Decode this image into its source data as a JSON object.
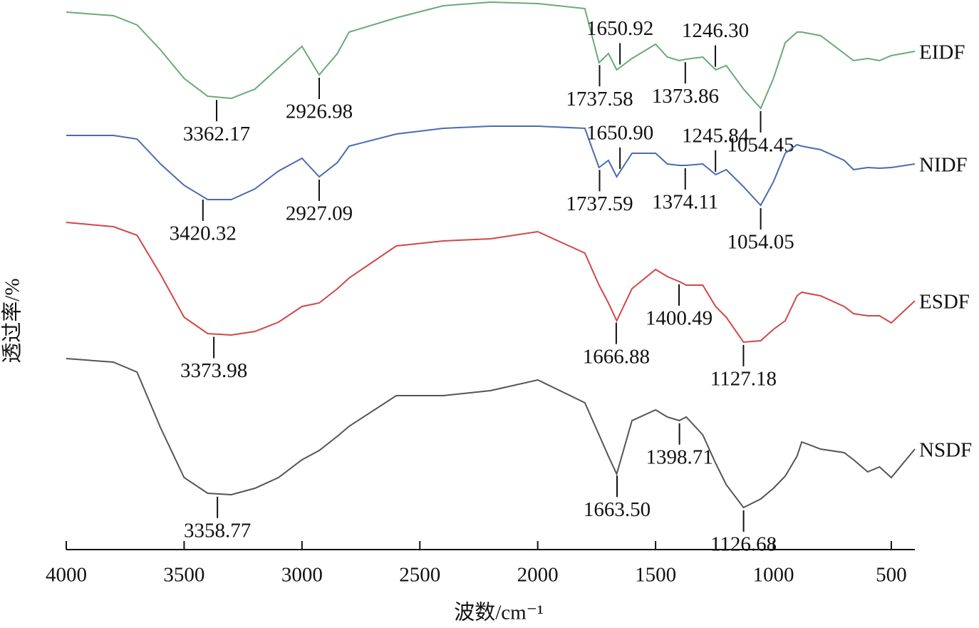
{
  "chart_data": {
    "type": "line",
    "x_label": "波数/cm⁻¹",
    "y_label": "透过率/%",
    "xlim": [
      4000,
      400
    ],
    "ylim": [
      0,
      77.1
    ],
    "xticks": [
      4000,
      3500,
      3000,
      2500,
      2000,
      1500,
      1000,
      500
    ],
    "x": [
      4000,
      3800,
      3700,
      3600,
      3500,
      3400,
      3300,
      3200,
      3100,
      3000,
      2927,
      2850,
      2800,
      2600,
      2400,
      2200,
      2000,
      1800,
      1740,
      1700,
      1665,
      1600,
      1500,
      1450,
      1400,
      1370,
      1300,
      1245,
      1200,
      1127,
      1054,
      1000,
      950,
      900,
      880,
      800,
      700,
      660,
      600,
      550,
      500,
      400
    ],
    "series": [
      {
        "name": "EIDF",
        "color": "#6aaa78",
        "values": [
          75.4,
          74.9,
          73.6,
          70.1,
          66.1,
          63.6,
          63.3,
          64.6,
          67.6,
          70.6,
          66.6,
          69.6,
          72.6,
          74.6,
          76.3,
          76.8,
          76.6,
          75.9,
          68.3,
          69.6,
          67.3,
          68.9,
          70.9,
          69.1,
          68.6,
          68.8,
          69.1,
          67.3,
          67.9,
          64.6,
          61.9,
          66.1,
          71.1,
          72.6,
          72.6,
          72.1,
          69.6,
          68.6,
          68.9,
          68.6,
          69.3,
          69.9
        ],
        "peaks": [
          3362.17,
          2926.98,
          1737.58,
          1650.92,
          1373.86,
          1246.3,
          1054.45
        ],
        "peak_labels": [
          "3362.17",
          "2926.98",
          "1737.58",
          "1650.92",
          "1373.86",
          "1246.30",
          "1054.45"
        ]
      },
      {
        "name": "NIDF",
        "color": "#4a6cb0",
        "values": [
          58.1,
          58.1,
          57.6,
          54.1,
          51.1,
          49.1,
          49.1,
          50.6,
          53.1,
          54.9,
          52.3,
          54.3,
          56.6,
          58.3,
          59.1,
          59.4,
          59.4,
          59.1,
          53.6,
          54.6,
          52.3,
          55.6,
          55.6,
          54.1,
          53.9,
          53.9,
          54.1,
          52.6,
          53.3,
          50.9,
          48.3,
          51.6,
          55.6,
          56.8,
          56.6,
          56.1,
          54.6,
          53.3,
          53.6,
          53.5,
          53.6,
          54.1
        ],
        "peaks": [
          3420.32,
          2927.09,
          1737.59,
          1650.9,
          1374.11,
          1245.84,
          1054.05
        ],
        "peak_labels": [
          "3420.32",
          "2927.09",
          "1737.59",
          "1650.90",
          "1374.11",
          "1245.84",
          "1054.05"
        ]
      },
      {
        "name": "ESDF",
        "color": "#d04848",
        "values": [
          45.9,
          45.3,
          44.1,
          38.6,
          32.6,
          30.3,
          30.1,
          30.6,
          31.9,
          34.1,
          34.6,
          36.6,
          38.1,
          42.6,
          43.3,
          43.6,
          44.6,
          41.6,
          37.1,
          34.6,
          32.1,
          36.6,
          39.3,
          38.3,
          37.6,
          37.1,
          37.1,
          34.1,
          32.6,
          29.1,
          29.3,
          30.9,
          32.1,
          35.6,
          36.1,
          35.6,
          34.1,
          33.1,
          32.8,
          32.8,
          31.8,
          34.9
        ],
        "peaks": [
          3373.98,
          1666.88,
          1400.49,
          1127.18
        ],
        "peak_labels": [
          "3373.98",
          "1666.88",
          "1400.49",
          "1127.18"
        ]
      },
      {
        "name": "NSDF",
        "color": "#555555",
        "values": [
          26.8,
          26.3,
          24.9,
          17.1,
          10.1,
          7.9,
          7.7,
          8.6,
          10.1,
          12.6,
          13.9,
          15.9,
          17.3,
          21.6,
          21.6,
          22.3,
          23.8,
          20.6,
          16.1,
          13.1,
          10.6,
          18.1,
          19.6,
          18.6,
          18.1,
          18.6,
          16.1,
          12.1,
          9.1,
          5.9,
          7.1,
          8.6,
          10.3,
          13.1,
          15.1,
          14.1,
          13.6,
          12.6,
          10.9,
          11.6,
          10.1,
          14.1
        ],
        "peaks": [
          3358.77,
          1663.5,
          1398.71,
          1126.68
        ],
        "peak_labels": [
          "3358.77",
          "1663.50",
          "1398.71",
          "1126.68"
        ]
      }
    ]
  }
}
